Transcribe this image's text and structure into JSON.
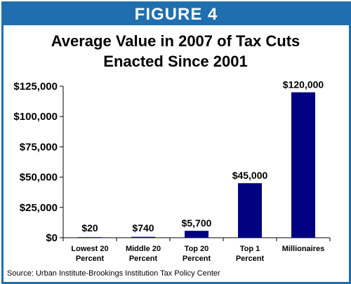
{
  "figure_label": "FIGURE 4",
  "source_note": "Source:  Urban Institute-Brookings Institution Tax Policy Center",
  "chart_data": {
    "type": "bar",
    "title_lines": [
      "Average Value in 2007 of Tax Cuts",
      "Enacted Since 2001"
    ],
    "categories": [
      [
        "Lowest 20",
        "Percent"
      ],
      [
        "Middle 20",
        "Percent"
      ],
      [
        "Top 20",
        "Percent"
      ],
      [
        "Top 1",
        "Percent"
      ],
      [
        "Millionaires"
      ]
    ],
    "values": [
      20,
      740,
      5700,
      45000,
      120000
    ],
    "data_labels": [
      "$20",
      "$740",
      "$5,700",
      "$45,000",
      "$120,000"
    ],
    "yticks": [
      0,
      25000,
      50000,
      75000,
      100000,
      125000
    ],
    "ytick_labels": [
      "$0",
      "$25,000",
      "$50,000",
      "$75,000",
      "$100,000",
      "$125,000"
    ],
    "ylim": [
      0,
      125000
    ],
    "bar_color": "#000080",
    "grid": false,
    "legend": "none"
  }
}
